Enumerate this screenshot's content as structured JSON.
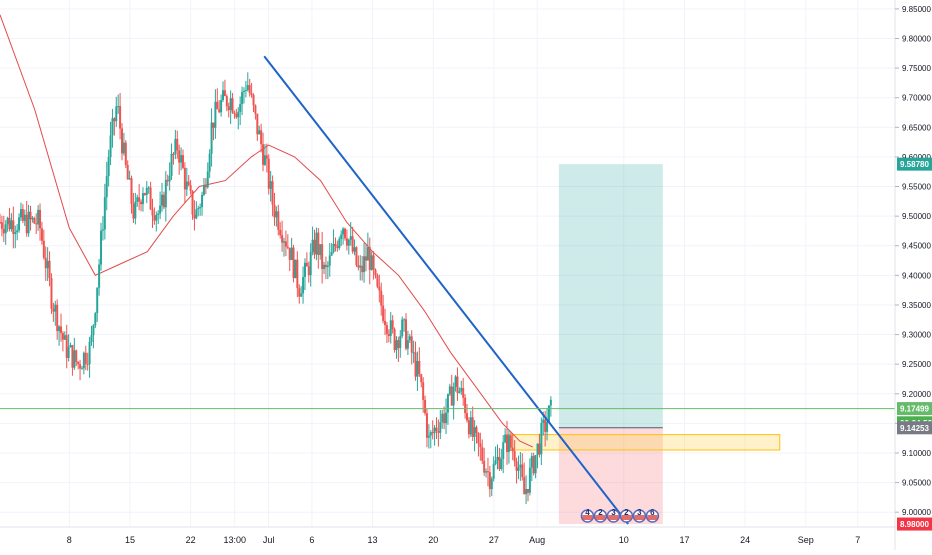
{
  "chart_data": {
    "type": "candlestick",
    "title": "",
    "xlabel": "",
    "ylabel": "",
    "ylim": [
      8.975,
      9.865
    ],
    "x_ticks": [
      {
        "label": "8",
        "x": 8
      },
      {
        "label": "15",
        "x": 15
      },
      {
        "label": "22",
        "x": 22
      },
      {
        "label": "13:00",
        "x": 27.1
      },
      {
        "label": "Jul",
        "x": 31
      },
      {
        "label": "6",
        "x": 36
      },
      {
        "label": "13",
        "x": 43
      },
      {
        "label": "20",
        "x": 50
      },
      {
        "label": "27",
        "x": 57
      },
      {
        "label": "Aug",
        "x": 62
      },
      {
        "label": "10",
        "x": 72
      },
      {
        "label": "17",
        "x": 79
      },
      {
        "label": "24",
        "x": 86
      },
      {
        "label": "Sep",
        "x": 93
      },
      {
        "label": "7",
        "x": 99
      }
    ],
    "y_ticks": [
      "9.85000",
      "9.80000",
      "9.75000",
      "9.70000",
      "9.65000",
      "9.60000",
      "9.55000",
      "9.50000",
      "9.45000",
      "9.40000",
      "9.35000",
      "9.30000",
      "9.25000",
      "9.20000",
      "9.15000",
      "9.10000",
      "9.05000",
      "9.00000"
    ],
    "price_labels": [
      {
        "label": "9.58780",
        "value": 9.5878,
        "color": "#26a69a"
      },
      {
        "label": "9.17499",
        "value": 9.17499,
        "color": "#66bb6a"
      },
      {
        "label": "00:24:52",
        "value": 9.151,
        "color": "#4caf50"
      },
      {
        "label": "9.14253",
        "value": 9.14253,
        "color": "#787b86"
      },
      {
        "label": "8.98000",
        "value": 8.98,
        "color": "#f23645"
      }
    ],
    "close_series": [
      {
        "x": 4.5,
        "y": 9.49
      },
      {
        "x": 6,
        "y": 9.36
      },
      {
        "x": 7.5,
        "y": 9.28
      },
      {
        "x": 9,
        "y": 9.25
      },
      {
        "x": 10.5,
        "y": 9.28
      },
      {
        "x": 11.5,
        "y": 9.43
      },
      {
        "x": 12.5,
        "y": 9.6
      },
      {
        "x": 13.5,
        "y": 9.69
      },
      {
        "x": 14.5,
        "y": 9.58
      },
      {
        "x": 15.5,
        "y": 9.5
      },
      {
        "x": 16.5,
        "y": 9.55
      },
      {
        "x": 17.5,
        "y": 9.52
      },
      {
        "x": 18.5,
        "y": 9.5
      },
      {
        "x": 19.5,
        "y": 9.58
      },
      {
        "x": 20.5,
        "y": 9.62
      },
      {
        "x": 21.5,
        "y": 9.55
      },
      {
        "x": 22.5,
        "y": 9.5
      },
      {
        "x": 23.5,
        "y": 9.54
      },
      {
        "x": 24.5,
        "y": 9.66
      },
      {
        "x": 25.5,
        "y": 9.69
      },
      {
        "x": 26.5,
        "y": 9.7
      },
      {
        "x": 27.5,
        "y": 9.68
      },
      {
        "x": 28.5,
        "y": 9.73
      },
      {
        "x": 29.5,
        "y": 9.66
      },
      {
        "x": 30.5,
        "y": 9.6
      },
      {
        "x": 31.5,
        "y": 9.52
      },
      {
        "x": 32.5,
        "y": 9.48
      },
      {
        "x": 33.5,
        "y": 9.44
      },
      {
        "x": 34.5,
        "y": 9.38
      },
      {
        "x": 35.5,
        "y": 9.41
      },
      {
        "x": 36.5,
        "y": 9.46
      },
      {
        "x": 37.5,
        "y": 9.4
      },
      {
        "x": 38.5,
        "y": 9.44
      },
      {
        "x": 39.5,
        "y": 9.49
      },
      {
        "x": 40.5,
        "y": 9.45
      },
      {
        "x": 41.5,
        "y": 9.4
      },
      {
        "x": 42.5,
        "y": 9.44
      },
      {
        "x": 43.5,
        "y": 9.37
      },
      {
        "x": 44.5,
        "y": 9.33
      },
      {
        "x": 45.5,
        "y": 9.29
      },
      {
        "x": 46.5,
        "y": 9.31
      },
      {
        "x": 47.5,
        "y": 9.27
      },
      {
        "x": 48.5,
        "y": 9.22
      },
      {
        "x": 49.5,
        "y": 9.12
      },
      {
        "x": 50.5,
        "y": 9.15
      },
      {
        "x": 51.5,
        "y": 9.17
      },
      {
        "x": 52.5,
        "y": 9.22
      },
      {
        "x": 53.5,
        "y": 9.19
      },
      {
        "x": 54.5,
        "y": 9.13
      },
      {
        "x": 55.5,
        "y": 9.1
      },
      {
        "x": 56.5,
        "y": 9.06
      },
      {
        "x": 57.5,
        "y": 9.09
      },
      {
        "x": 58.5,
        "y": 9.12
      },
      {
        "x": 59.5,
        "y": 9.1
      },
      {
        "x": 60.5,
        "y": 9.03
      },
      {
        "x": 61.5,
        "y": 9.08
      },
      {
        "x": 62.5,
        "y": 9.13
      },
      {
        "x": 63.5,
        "y": 9.17
      }
    ],
    "moving_average": [
      {
        "x": 0,
        "y": 9.84
      },
      {
        "x": 4,
        "y": 9.68
      },
      {
        "x": 8,
        "y": 9.48
      },
      {
        "x": 11,
        "y": 9.4
      },
      {
        "x": 14,
        "y": 9.42
      },
      {
        "x": 17,
        "y": 9.44
      },
      {
        "x": 20,
        "y": 9.5
      },
      {
        "x": 23,
        "y": 9.55
      },
      {
        "x": 26,
        "y": 9.56
      },
      {
        "x": 29,
        "y": 9.6
      },
      {
        "x": 31,
        "y": 9.62
      },
      {
        "x": 34,
        "y": 9.6
      },
      {
        "x": 37,
        "y": 9.56
      },
      {
        "x": 40,
        "y": 9.49
      },
      {
        "x": 43,
        "y": 9.44
      },
      {
        "x": 46,
        "y": 9.4
      },
      {
        "x": 49,
        "y": 9.34
      },
      {
        "x": 52,
        "y": 9.27
      },
      {
        "x": 55,
        "y": 9.21
      },
      {
        "x": 58,
        "y": 9.15
      },
      {
        "x": 60,
        "y": 9.12
      },
      {
        "x": 61.5,
        "y": 9.11
      }
    ],
    "trendline": {
      "x1": 30.5,
      "y1": 9.77,
      "x2": 72.5,
      "y2": 8.98,
      "color": "#1e63c7"
    },
    "horizontal_line": {
      "y": 9.17499,
      "color": "#66bb6a"
    },
    "zone_rect": {
      "x1": 58.5,
      "x2": 90,
      "y1": 9.105,
      "y2": 9.131,
      "color": "#ffc107"
    },
    "position_tool": {
      "x1": 64.5,
      "x2": 76.5,
      "entry": 9.14253,
      "target": 9.5878,
      "stop": 8.98
    },
    "event_markers": [
      {
        "label": "4",
        "x": 67.8
      },
      {
        "label": "2",
        "x": 69.3
      },
      {
        "label": "3",
        "x": 70.8
      },
      {
        "label": "2",
        "x": 72.3
      },
      {
        "label": "3",
        "x": 73.8
      },
      {
        "label": "6",
        "x": 75.3
      }
    ]
  }
}
